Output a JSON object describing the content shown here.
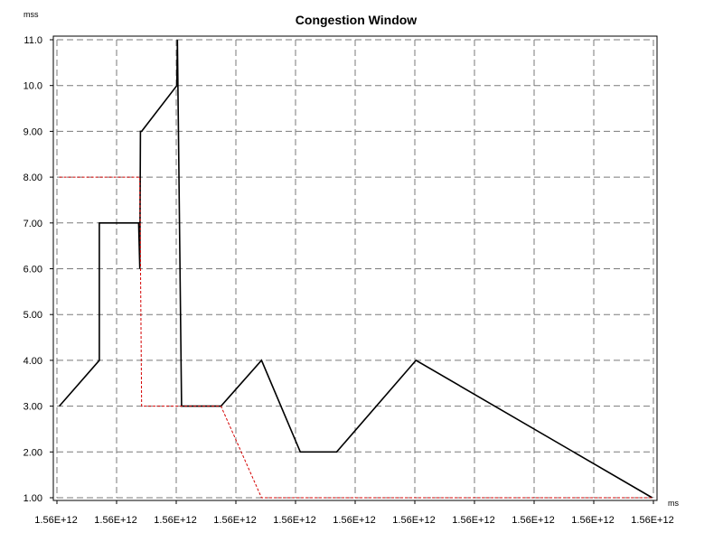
{
  "chart_data": {
    "type": "line",
    "title": "Congestion Window",
    "ylabel": "mss",
    "xlabel": "ms",
    "ylim": [
      1,
      11
    ],
    "xlim": [
      0,
      10
    ],
    "grid": true,
    "y_ticks": [
      "1.00",
      "2.00",
      "3.00",
      "4.00",
      "5.00",
      "6.00",
      "7.00",
      "8.00",
      "9.00",
      "10.0",
      "11.0"
    ],
    "x_ticks": [
      "1.56E+12",
      "1.56E+12",
      "1.56E+12",
      "1.56E+12",
      "1.56E+12",
      "1.56E+12",
      "1.56E+12",
      "1.56E+12",
      "1.56E+12",
      "1.56E+12",
      "1.56E+12"
    ],
    "series": [
      {
        "color": "#000000",
        "x": [
          0.04,
          0.71,
          0.71,
          1.37,
          1.39,
          1.4,
          1.42,
          2.01,
          2.02,
          2.09,
          2.75,
          3.43,
          4.08,
          4.69,
          6.02,
          9.98
        ],
        "y": [
          3,
          4,
          7,
          7,
          6,
          9,
          9,
          10,
          11,
          3,
          3,
          4,
          2,
          2,
          4,
          1
        ]
      },
      {
        "color": "#d40000",
        "x": [
          0.04,
          1.39,
          1.42,
          2.75,
          3.43,
          9.98
        ],
        "y": [
          8,
          8,
          3,
          3,
          1,
          1
        ]
      }
    ]
  }
}
